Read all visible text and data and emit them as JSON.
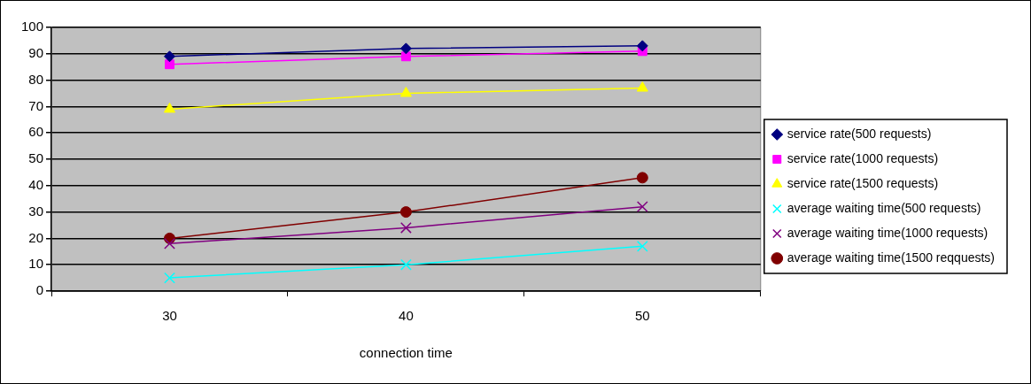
{
  "chart_data": {
    "type": "line",
    "xlabel": "connection time",
    "categories": [
      "30",
      "40",
      "50"
    ],
    "ylim": [
      0,
      100
    ],
    "yticks": [
      0,
      10,
      20,
      30,
      40,
      50,
      60,
      70,
      80,
      90,
      100
    ],
    "grid": "y",
    "legend": "right",
    "series": [
      {
        "name": "service rate(500 requests)",
        "color": "#000080",
        "marker": "diamond",
        "values": [
          89,
          92,
          93
        ]
      },
      {
        "name": "service rate(1000 requests)",
        "color": "#ff00ff",
        "marker": "square",
        "values": [
          86,
          89,
          91
        ]
      },
      {
        "name": "service rate(1500 requests)",
        "color": "#ffff00",
        "marker": "triangle",
        "values": [
          69,
          75,
          77
        ]
      },
      {
        "name": "average waiting time(500 requests)",
        "color": "#00ffff",
        "marker": "cross",
        "values": [
          5,
          10,
          17
        ]
      },
      {
        "name": "average waiting time(1000 requests)",
        "color": "#800080",
        "marker": "cross",
        "values": [
          18,
          24,
          32
        ]
      },
      {
        "name": "average waiting time(1500 reqquests)",
        "color": "#800000",
        "marker": "circle",
        "values": [
          20,
          30,
          43
        ]
      }
    ]
  }
}
